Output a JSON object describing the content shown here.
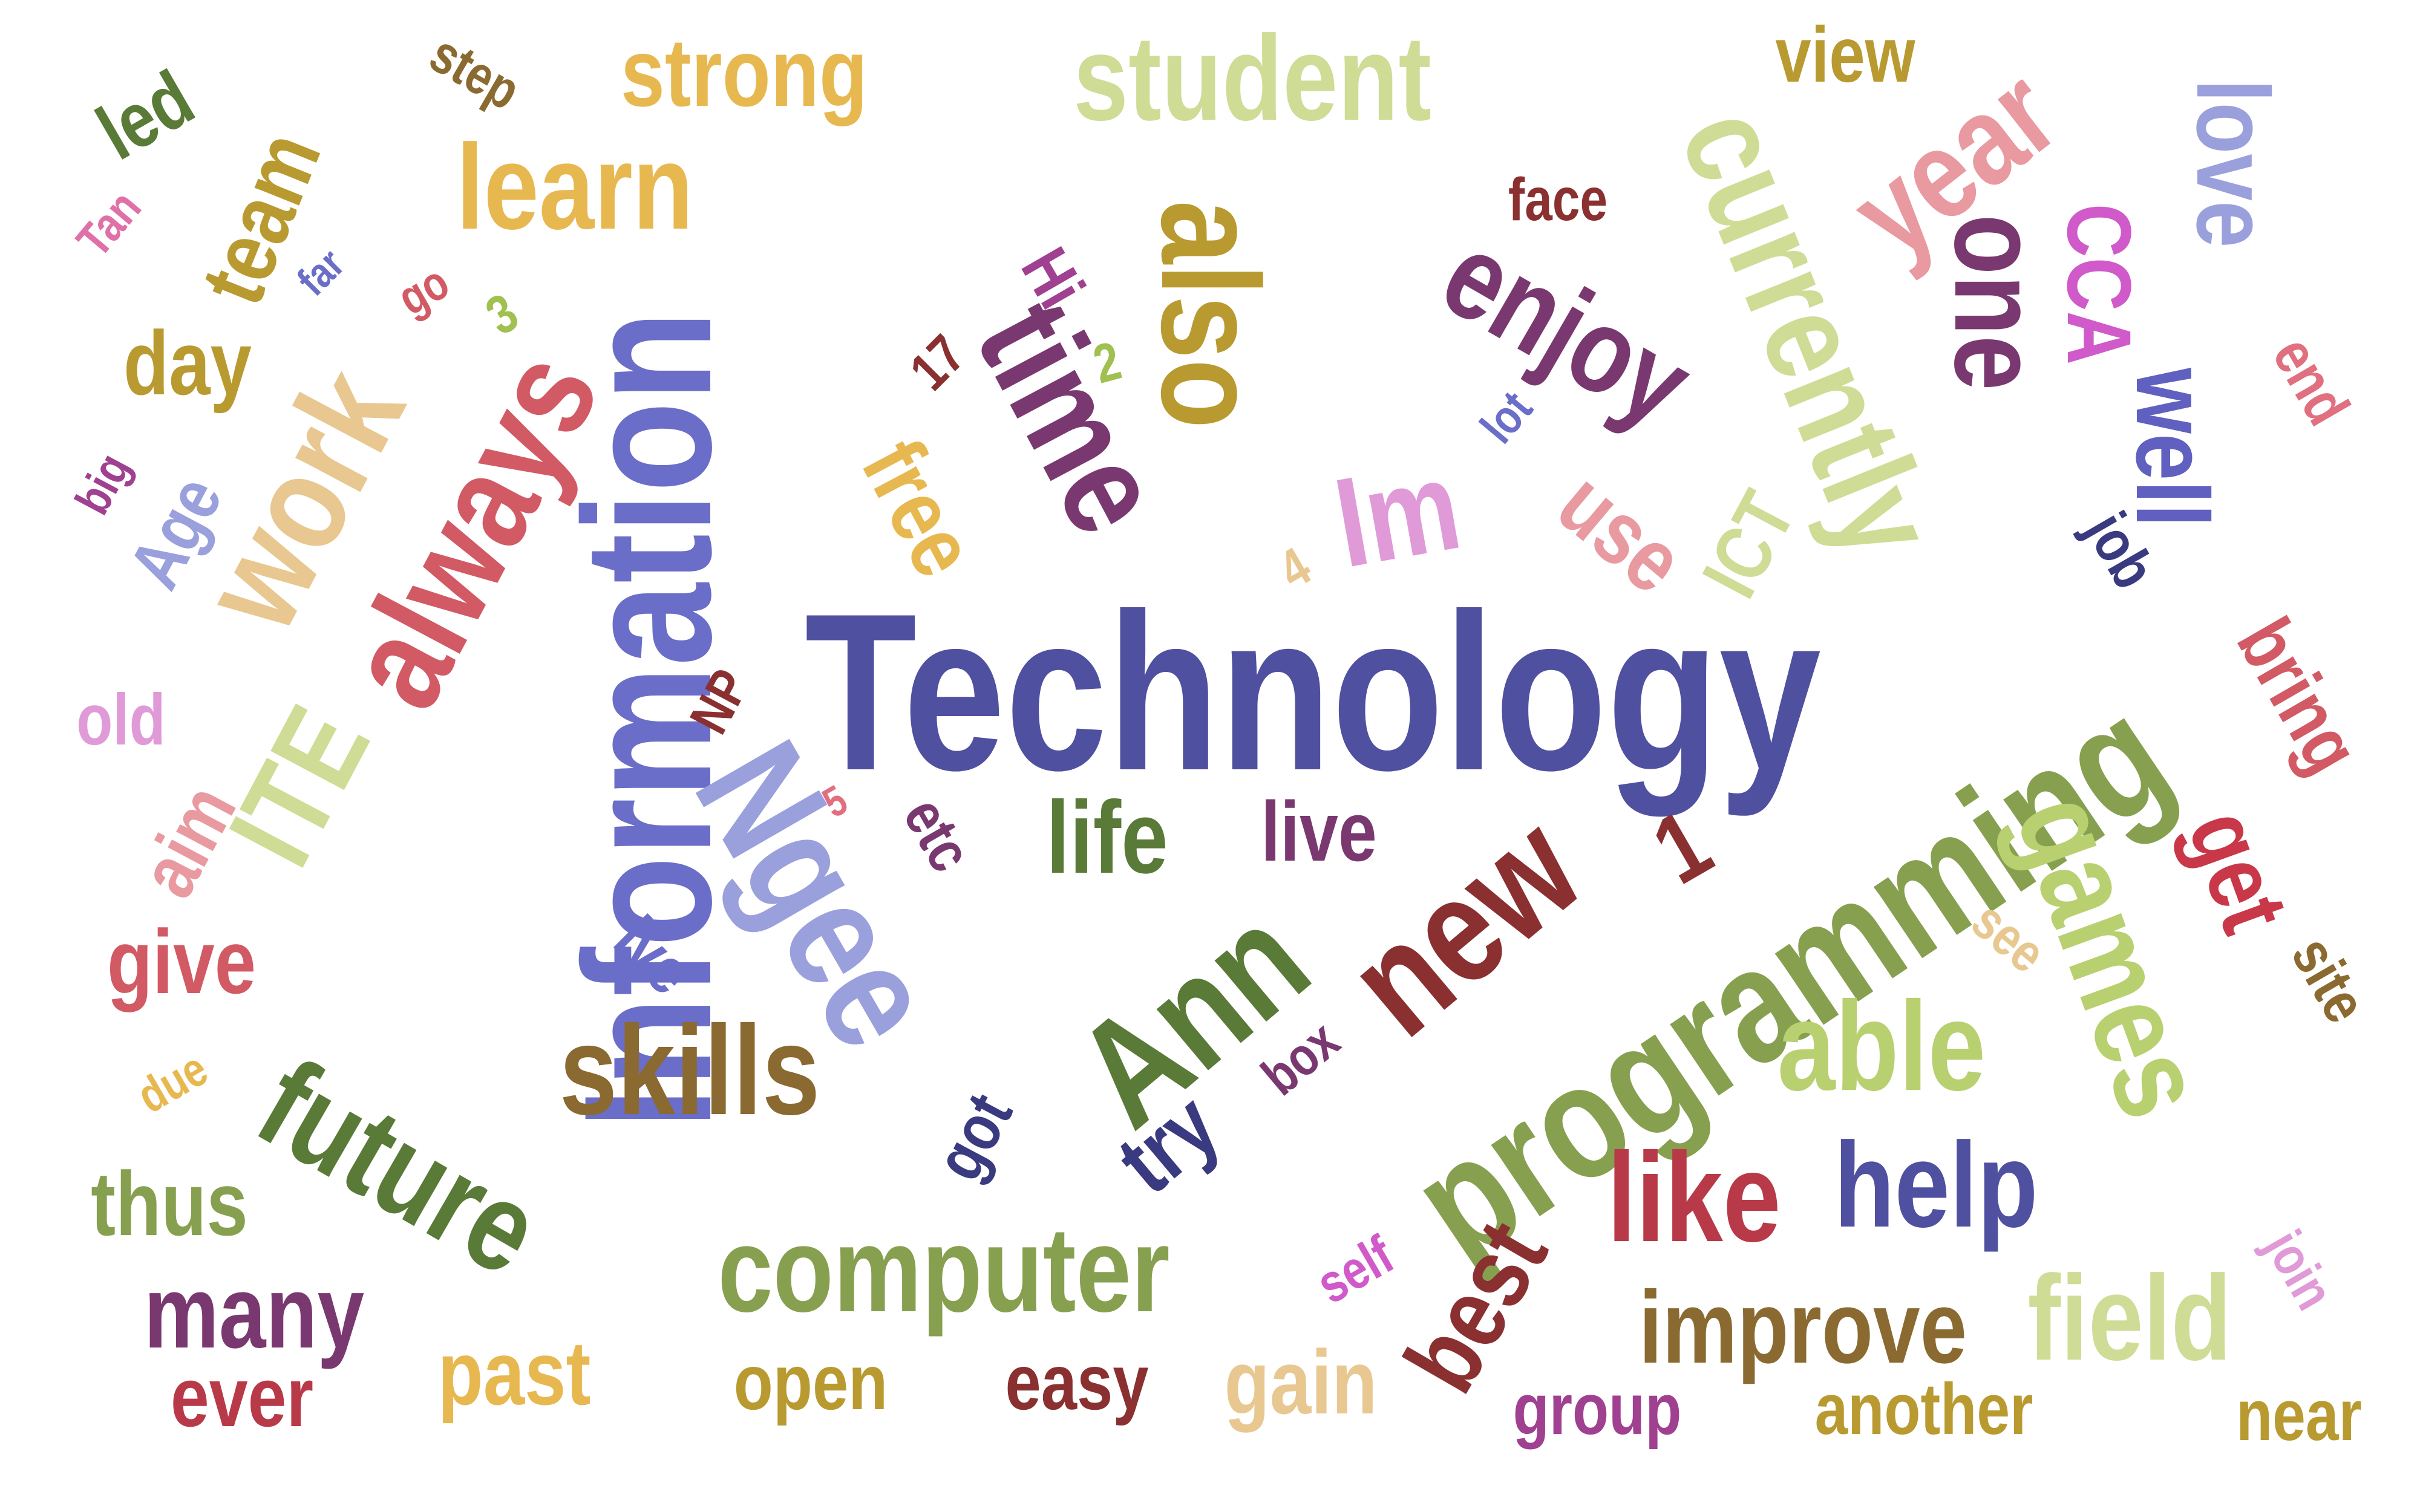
{
  "words": [
    {
      "text": "Technology",
      "color": "#5050a0"
    },
    {
      "text": "Information",
      "color": "#6a6ec8"
    },
    {
      "text": "programming",
      "color": "#86a050"
    },
    {
      "text": "Ngee",
      "color": "#9aa0dc"
    },
    {
      "text": "Ann",
      "color": "#5a7a38"
    },
    {
      "text": "new",
      "color": "#8a3030"
    },
    {
      "text": "always",
      "color": "#d25a64"
    },
    {
      "text": "work",
      "color": "#e8c890"
    },
    {
      "text": "ITE",
      "color": "#cedc96"
    },
    {
      "text": "also",
      "color": "#b89a30"
    },
    {
      "text": "time",
      "color": "#7a3870"
    },
    {
      "text": "enjoy",
      "color": "#7a3870"
    },
    {
      "text": "one",
      "color": "#7a3870"
    },
    {
      "text": "currently",
      "color": "#cedc96"
    },
    {
      "text": "year",
      "color": "#e89aa0"
    },
    {
      "text": "love",
      "color": "#9aa0dc"
    },
    {
      "text": "well",
      "color": "#6060c0"
    },
    {
      "text": "CCA",
      "color": "#d05aca"
    },
    {
      "text": "student",
      "color": "#cedc96"
    },
    {
      "text": "learn",
      "color": "#e8b850"
    },
    {
      "text": "strong",
      "color": "#e8b850"
    },
    {
      "text": "team",
      "color": "#b89a30"
    },
    {
      "text": "led",
      "color": "#5a7a38"
    },
    {
      "text": "step",
      "color": "#8a6a30"
    },
    {
      "text": "view",
      "color": "#b89a30"
    },
    {
      "text": "face",
      "color": "#8a3030"
    },
    {
      "text": "Tan",
      "color": "#e070a8"
    },
    {
      "text": "far",
      "color": "#6a6ec8"
    },
    {
      "text": "go",
      "color": "#d25a64"
    },
    {
      "text": "3",
      "color": "#a0c050"
    },
    {
      "text": "day",
      "color": "#b89a30"
    },
    {
      "text": "Hi",
      "color": "#a04090"
    },
    {
      "text": "2",
      "color": "#a0c050"
    },
    {
      "text": "17",
      "color": "#8a3030"
    },
    {
      "text": "free",
      "color": "#e8b850"
    },
    {
      "text": "Im",
      "color": "#e09ad8"
    },
    {
      "text": "use",
      "color": "#e89aa0"
    },
    {
      "text": "lot",
      "color": "#6a6ec8"
    },
    {
      "text": "ICT",
      "color": "#cedc96"
    },
    {
      "text": "end",
      "color": "#e07080"
    },
    {
      "text": "job",
      "color": "#3a3a80"
    },
    {
      "text": "big",
      "color": "#a04090"
    },
    {
      "text": "Age",
      "color": "#9aa0dc"
    },
    {
      "text": "4",
      "color": "#e8c890"
    },
    {
      "text": "bring",
      "color": "#d25a64"
    },
    {
      "text": "old",
      "color": "#e09ad8"
    },
    {
      "text": "NP",
      "color": "#8a3030"
    },
    {
      "text": "aim",
      "color": "#e89aa0"
    },
    {
      "text": "5",
      "color": "#e07080"
    },
    {
      "text": "etc",
      "color": "#7a3870"
    },
    {
      "text": "life",
      "color": "#5a7a38"
    },
    {
      "text": "live",
      "color": "#7a3870"
    },
    {
      "text": "get",
      "color": "#c83848"
    },
    {
      "text": "games",
      "color": "#b8d070"
    },
    {
      "text": "site",
      "color": "#8a6a30"
    },
    {
      "text": "see",
      "color": "#e8c890"
    },
    {
      "text": "give",
      "color": "#d25a64"
    },
    {
      "text": "lve",
      "color": "#6a6ec8"
    },
    {
      "text": "skills",
      "color": "#8a6a30"
    },
    {
      "text": "able",
      "color": "#b8d070"
    },
    {
      "text": "future",
      "color": "#5a7a38"
    },
    {
      "text": "due",
      "color": "#e8b850"
    },
    {
      "text": "got",
      "color": "#3a3a80"
    },
    {
      "text": "box",
      "color": "#7a3870"
    },
    {
      "text": "try",
      "color": "#3a3a80"
    },
    {
      "text": "like",
      "color": "#b83a48"
    },
    {
      "text": "help",
      "color": "#5050a0"
    },
    {
      "text": "thus",
      "color": "#86a050"
    },
    {
      "text": "computer",
      "color": "#86a050"
    },
    {
      "text": "best",
      "color": "#8a3030"
    },
    {
      "text": "self",
      "color": "#d05aca"
    },
    {
      "text": "join",
      "color": "#e09ad8"
    },
    {
      "text": "field",
      "color": "#cedc96"
    },
    {
      "text": "many",
      "color": "#7a3870"
    },
    {
      "text": "improve",
      "color": "#8a6a30"
    },
    {
      "text": "past",
      "color": "#e8b850"
    },
    {
      "text": "ever",
      "color": "#b83a48"
    },
    {
      "text": "open",
      "color": "#b89a30"
    },
    {
      "text": "easy",
      "color": "#8a3030"
    },
    {
      "text": "gain",
      "color": "#e8c890"
    },
    {
      "text": "group",
      "color": "#a04090"
    },
    {
      "text": "another",
      "color": "#b89a30"
    },
    {
      "text": "near",
      "color": "#b89a30"
    },
    {
      "text": "1",
      "color": "#8a3030"
    }
  ]
}
